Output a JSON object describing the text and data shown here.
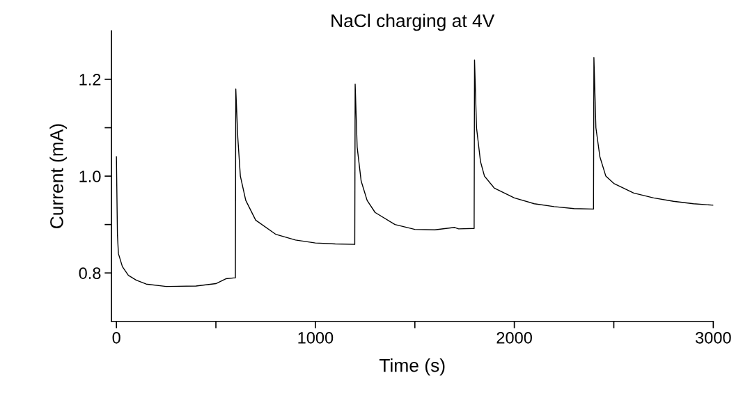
{
  "chart_data": {
    "type": "line",
    "title": "NaCl charging at 4V",
    "xlabel": "Time (s)",
    "ylabel": "Current (mA)",
    "xlim": [
      -25,
      3000
    ],
    "ylim": [
      0.7,
      1.3
    ],
    "xticks": [
      0,
      {
        "value": 500,
        "label": null
      },
      1000,
      {
        "value": 1500,
        "label": null
      },
      2000,
      {
        "value": 2500,
        "label": null
      },
      3000
    ],
    "yticks": [
      0.8,
      {
        "value": 0.9,
        "label": null
      },
      {
        "value": 1.0,
        "label": "1.0"
      },
      {
        "value": 1.1,
        "label": null
      },
      1.2
    ],
    "grid": false,
    "legend": false,
    "marker": "none",
    "line_style": "solid",
    "series": [
      {
        "color": "#000000",
        "x": [
          0,
          5,
          10,
          30,
          60,
          100,
          150,
          250,
          400,
          500,
          550,
          598,
          600,
          610,
          623,
          650,
          700,
          800,
          900,
          1000,
          1100,
          1198,
          1200,
          1210,
          1230,
          1260,
          1300,
          1400,
          1500,
          1600,
          1700,
          1720,
          1798,
          1800,
          1810,
          1830,
          1850,
          1900,
          2000,
          2100,
          2200,
          2300,
          2398,
          2400,
          2410,
          2430,
          2460,
          2500,
          2600,
          2700,
          2800,
          2900,
          3000
        ],
        "values": [
          1.04,
          0.88,
          0.84,
          0.813,
          0.795,
          0.785,
          0.777,
          0.772,
          0.773,
          0.778,
          0.788,
          0.79,
          1.18,
          1.08,
          1.0,
          0.95,
          0.909,
          0.88,
          0.868,
          0.862,
          0.86,
          0.859,
          1.19,
          1.06,
          0.99,
          0.95,
          0.925,
          0.9,
          0.89,
          0.889,
          0.894,
          0.891,
          0.892,
          1.24,
          1.1,
          1.03,
          1.0,
          0.975,
          0.955,
          0.943,
          0.937,
          0.933,
          0.932,
          1.245,
          1.1,
          1.04,
          1.0,
          0.985,
          0.965,
          0.955,
          0.948,
          0.943,
          0.94
        ]
      }
    ]
  }
}
